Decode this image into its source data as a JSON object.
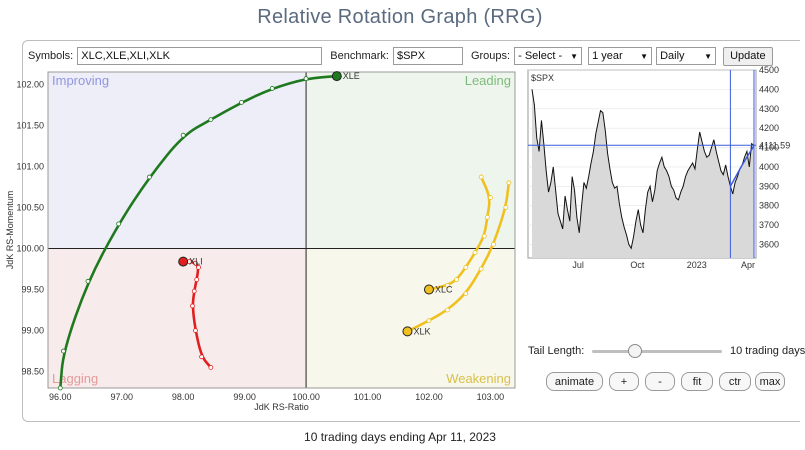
{
  "title": "Relative Rotation Graph (RRG)",
  "controls": {
    "symbols_label": "Symbols:",
    "symbols_value": "XLC,XLE,XLI,XLK",
    "benchmark_label": "Benchmark:",
    "benchmark_value": "$SPX",
    "groups_label": "Groups:",
    "groups_value": "- Select -",
    "period_value": "1 year",
    "frequency_value": "Daily",
    "update_label": "Update"
  },
  "quadrants": {
    "improving": "Improving",
    "leading": "Leading",
    "lagging": "Lagging",
    "weakening": "Weakening",
    "colors": {
      "improving_bg": "#eeeef8",
      "leading_bg": "#eef5ec",
      "lagging_bg": "#f8ebeb",
      "weakening_bg": "#f7f7ec",
      "improving_text": "#8f95e0",
      "leading_text": "#7dbb7a",
      "lagging_text": "#e39a9a",
      "weakening_text": "#d9c04a"
    }
  },
  "chart_data": {
    "type": "scatter",
    "xlabel": "JdK RS-Ratio",
    "ylabel": "JdK RS-Momentum",
    "xlim": [
      95.8,
      103.4
    ],
    "ylim": [
      98.3,
      102.15
    ],
    "x_ticks": [
      "96.00",
      "97.00",
      "98.00",
      "99.00",
      "100.00",
      "101.00",
      "102.00",
      "103.00"
    ],
    "y_ticks": [
      "98.50",
      "99.00",
      "99.50",
      "100.00",
      "100.50",
      "101.00",
      "101.50",
      "102.00"
    ],
    "series": [
      {
        "name": "XLE",
        "color": "#1f7a1f",
        "points": [
          [
            96.0,
            98.3
          ],
          [
            96.05,
            98.75
          ],
          [
            96.45,
            99.6
          ],
          [
            96.95,
            100.3
          ],
          [
            97.45,
            100.87
          ],
          [
            98.0,
            101.38
          ],
          [
            98.45,
            101.57
          ],
          [
            98.95,
            101.78
          ],
          [
            99.45,
            101.95
          ],
          [
            100.0,
            102.07
          ],
          [
            100.5,
            102.1
          ]
        ]
      },
      {
        "name": "XLI",
        "color": "#e02020",
        "points": [
          [
            98.45,
            98.55
          ],
          [
            98.3,
            98.68
          ],
          [
            98.2,
            99.0
          ],
          [
            98.15,
            99.3
          ],
          [
            98.18,
            99.48
          ],
          [
            98.22,
            99.62
          ],
          [
            98.25,
            99.77
          ],
          [
            98.2,
            99.82
          ],
          [
            98.1,
            99.84
          ],
          [
            98.0,
            99.84
          ]
        ]
      },
      {
        "name": "XLC",
        "color": "#f0c020",
        "points": [
          [
            102.85,
            100.87
          ],
          [
            103.0,
            100.62
          ],
          [
            102.95,
            100.38
          ],
          [
            102.9,
            100.15
          ],
          [
            102.75,
            99.95
          ],
          [
            102.6,
            99.77
          ],
          [
            102.45,
            99.62
          ],
          [
            102.3,
            99.55
          ],
          [
            102.0,
            99.5
          ]
        ]
      },
      {
        "name": "XLK",
        "color": "#f0c020",
        "points": [
          [
            103.3,
            100.8
          ],
          [
            103.25,
            100.5
          ],
          [
            103.05,
            100.05
          ],
          [
            102.85,
            99.75
          ],
          [
            102.6,
            99.45
          ],
          [
            102.3,
            99.25
          ],
          [
            102.0,
            99.12
          ],
          [
            101.65,
            98.99
          ]
        ]
      }
    ]
  },
  "benchmark_chart": {
    "symbol": "$SPX",
    "last_value": "4111.59",
    "y_ticks": [
      "4500",
      "4400",
      "4300",
      "4200",
      "4100",
      "4000",
      "3900",
      "3800",
      "3700",
      "3600"
    ],
    "ylim": [
      3530,
      4500
    ],
    "x_labels": [
      "Jul",
      "Oct",
      "2023",
      "Apr"
    ],
    "values": [
      4400,
      4320,
      4150,
      4080,
      4240,
      4120,
      3980,
      3870,
      3920,
      4000,
      3880,
      3760,
      3720,
      3680,
      3850,
      3780,
      3720,
      3950,
      3880,
      3740,
      3660,
      3800,
      3920,
      3890,
      3950,
      4020,
      4080,
      4170,
      4230,
      4290,
      4280,
      4190,
      4070,
      3990,
      3920,
      3890,
      3900,
      3810,
      3740,
      3690,
      3650,
      3600,
      3580,
      3640,
      3720,
      3780,
      3700,
      3660,
      3780,
      3870,
      3900,
      3820,
      3880,
      3980,
      4020,
      4050,
      4000,
      3980,
      3950,
      3900,
      3880,
      3840,
      3830,
      3870,
      3900,
      3950,
      3980,
      4000,
      4020,
      3990,
      4090,
      4180,
      4130,
      4080,
      4050,
      4060,
      4100,
      4140,
      4080,
      4030,
      3980,
      3960,
      4010,
      3950,
      3900,
      3860,
      3920,
      3950,
      3990,
      4010,
      4050,
      4080,
      4000,
      4120,
      4110
    ]
  },
  "tail": {
    "label": "Tail Length:",
    "value_text": "10 trading days",
    "value": 10,
    "max": 30
  },
  "buttons": {
    "animate": "animate",
    "plus": "+",
    "minus": "-",
    "fit": "fit",
    "ctr": "ctr",
    "max": "max"
  },
  "footer": "10 trading days ending Apr 11, 2023"
}
